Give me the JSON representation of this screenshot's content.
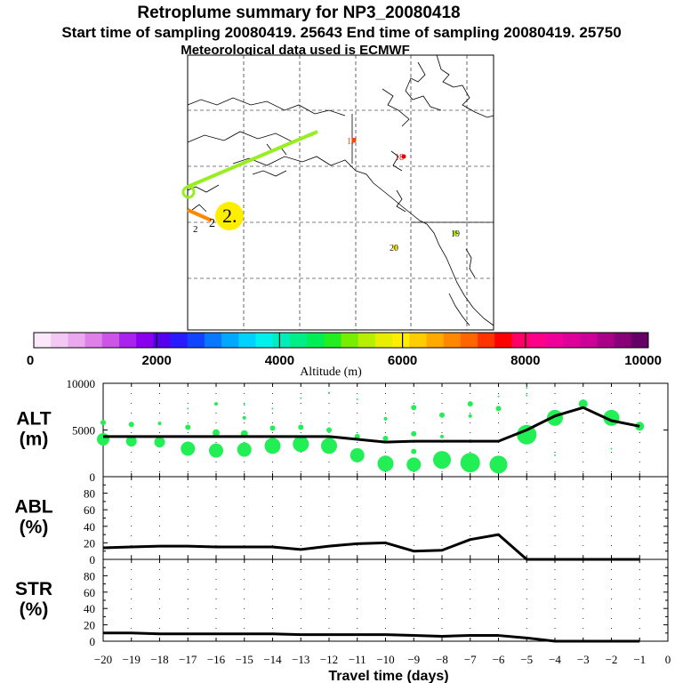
{
  "header": {
    "title": "Retroplume summary for NP3_20080418",
    "subtitle": "Start time of sampling 20080419. 25643     End time of sampling 20080419. 25750",
    "met_line": "Meteorological data used is ECMWF"
  },
  "map": {
    "labels": [
      {
        "text": "17",
        "color": "#ff4400"
      },
      {
        "text": "18",
        "color": "#dd0000"
      },
      {
        "text": "19",
        "color": "#222222"
      },
      {
        "text": "20",
        "color": "#222222"
      },
      {
        "text": "2",
        "color": "#000000"
      },
      {
        "text": "2",
        "color": "#000000"
      },
      {
        "text": "2.",
        "color": "#000000"
      }
    ]
  },
  "colorbar": {
    "label": "Altitude (m)",
    "ticks": [
      "0",
      "2000",
      "4000",
      "6000",
      "8000",
      "10000"
    ],
    "colors": [
      "#fbe8fb",
      "#f3c8f3",
      "#eaa8ee",
      "#de80e8",
      "#cc55e8",
      "#aa22ee",
      "#8800ee",
      "#5500ee",
      "#2a1aff",
      "#1144ff",
      "#0a77ff",
      "#00a8ff",
      "#00d2ff",
      "#00f0ee",
      "#00eebb",
      "#00ee88",
      "#00ee55",
      "#22ee22",
      "#77ee00",
      "#b8ee00",
      "#e8ee00",
      "#ffee00",
      "#ffcc00",
      "#ffaa00",
      "#ff8800",
      "#ff6600",
      "#ff3300",
      "#ff0000",
      "#ff0066",
      "#ff0088",
      "#ee0099",
      "#dd0099",
      "#cc0099",
      "#aa0088",
      "#880077",
      "#660066"
    ]
  },
  "chart_data": [
    {
      "type": "scatter",
      "name": "ALT",
      "ylabel": "ALT\n(m)",
      "ylabel_line1": "ALT",
      "ylabel_line2": "(m)",
      "ylim": [
        0,
        10000
      ],
      "yticks": [
        "10000",
        "5000",
        "0"
      ],
      "x": [
        -20,
        -19,
        -18,
        -17,
        -16,
        -15,
        -14,
        -13,
        -12,
        -11,
        -10,
        -9,
        -8,
        -7,
        -6,
        -5,
        -4,
        -3,
        -2,
        -1
      ],
      "mean_altitude": [
        4300,
        4300,
        4300,
        4300,
        4300,
        4300,
        4300,
        4300,
        4300,
        4000,
        3700,
        3800,
        3800,
        3800,
        3800,
        5000,
        6500,
        7400,
        6000,
        5400
      ],
      "plume_points": [
        {
          "x": -20,
          "y": 4000,
          "s": 7
        },
        {
          "x": -20,
          "y": 5800,
          "s": 3
        },
        {
          "x": -19,
          "y": 3800,
          "s": 6
        },
        {
          "x": -19,
          "y": 5600,
          "s": 3
        },
        {
          "x": -18,
          "y": 3700,
          "s": 6
        },
        {
          "x": -18,
          "y": 5700,
          "s": 2
        },
        {
          "x": -17,
          "y": 3000,
          "s": 8
        },
        {
          "x": -17,
          "y": 5300,
          "s": 3
        },
        {
          "x": -17,
          "y": 7300,
          "s": 1
        },
        {
          "x": -16,
          "y": 2800,
          "s": 8
        },
        {
          "x": -16,
          "y": 4700,
          "s": 4
        },
        {
          "x": -16,
          "y": 7800,
          "s": 2
        },
        {
          "x": -15,
          "y": 2900,
          "s": 8
        },
        {
          "x": -15,
          "y": 4600,
          "s": 4
        },
        {
          "x": -15,
          "y": 6300,
          "s": 2
        },
        {
          "x": -15,
          "y": 7700,
          "s": 1
        },
        {
          "x": -14,
          "y": 3300,
          "s": 9
        },
        {
          "x": -14,
          "y": 5200,
          "s": 3
        },
        {
          "x": -14,
          "y": 7300,
          "s": 1
        },
        {
          "x": -13,
          "y": 3500,
          "s": 9
        },
        {
          "x": -13,
          "y": 5300,
          "s": 3
        },
        {
          "x": -13,
          "y": 8400,
          "s": 1
        },
        {
          "x": -12,
          "y": 3300,
          "s": 9
        },
        {
          "x": -12,
          "y": 5000,
          "s": 3
        },
        {
          "x": -12,
          "y": 9000,
          "s": 1
        },
        {
          "x": -11,
          "y": 2300,
          "s": 8
        },
        {
          "x": -11,
          "y": 4300,
          "s": 3
        },
        {
          "x": -11,
          "y": 8300,
          "s": 1
        },
        {
          "x": -10,
          "y": 1400,
          "s": 9
        },
        {
          "x": -10,
          "y": 4100,
          "s": 3
        },
        {
          "x": -10,
          "y": 6200,
          "s": 2
        },
        {
          "x": -9,
          "y": 1300,
          "s": 8
        },
        {
          "x": -9,
          "y": 2700,
          "s": 3
        },
        {
          "x": -9,
          "y": 4600,
          "s": 3
        },
        {
          "x": -9,
          "y": 7400,
          "s": 3
        },
        {
          "x": -8,
          "y": 1800,
          "s": 10
        },
        {
          "x": -8,
          "y": 4300,
          "s": 2
        },
        {
          "x": -8,
          "y": 6600,
          "s": 3
        },
        {
          "x": -7,
          "y": 1500,
          "s": 11
        },
        {
          "x": -7,
          "y": 3800,
          "s": 2
        },
        {
          "x": -7,
          "y": 7800,
          "s": 3
        },
        {
          "x": -7,
          "y": 6500,
          "s": 2
        },
        {
          "x": -6,
          "y": 1300,
          "s": 10
        },
        {
          "x": -6,
          "y": 7300,
          "s": 3
        },
        {
          "x": -6,
          "y": 8600,
          "s": 1
        },
        {
          "x": -5,
          "y": 4500,
          "s": 11
        },
        {
          "x": -5,
          "y": 8700,
          "s": 1
        },
        {
          "x": -5,
          "y": 9500,
          "s": 1
        },
        {
          "x": -4,
          "y": 6300,
          "s": 9
        },
        {
          "x": -4,
          "y": 2300,
          "s": 1
        },
        {
          "x": -3,
          "y": 7800,
          "s": 5
        },
        {
          "x": -2,
          "y": 6300,
          "s": 9
        },
        {
          "x": -2,
          "y": 3000,
          "s": 1
        },
        {
          "x": -1,
          "y": 5400,
          "s": 5
        }
      ]
    },
    {
      "type": "line",
      "name": "ABL",
      "ylabel_line1": "ABL",
      "ylabel_line2": "(%)",
      "ylim": [
        0,
        100
      ],
      "yticks": [
        "80",
        "60",
        "40",
        "20",
        "0"
      ],
      "x": [
        -20,
        -19,
        -18,
        -17,
        -16,
        -15,
        -14,
        -13,
        -12,
        -11,
        -10,
        -9,
        -8,
        -7,
        -6,
        -5,
        -4,
        -3,
        -2,
        -1
      ],
      "values": [
        14,
        15,
        16,
        16,
        15,
        15,
        15,
        12,
        16,
        19,
        20,
        10,
        11,
        24,
        30,
        0,
        0,
        0,
        0,
        0
      ]
    },
    {
      "type": "line",
      "name": "STR",
      "ylabel_line1": "STR",
      "ylabel_line2": "(%)",
      "ylim": [
        0,
        100
      ],
      "yticks": [
        "80",
        "60",
        "40",
        "20",
        "0"
      ],
      "x": [
        -20,
        -19,
        -18,
        -17,
        -16,
        -15,
        -14,
        -13,
        -12,
        -11,
        -10,
        -9,
        -8,
        -7,
        -6,
        -5,
        -4,
        -3,
        -2,
        -1
      ],
      "values": [
        10,
        10,
        9,
        9,
        9,
        9,
        9,
        8,
        8,
        8,
        8,
        7,
        6,
        7,
        7,
        4,
        0,
        0,
        0,
        0
      ]
    }
  ],
  "xaxis": {
    "label": "Travel time (days)",
    "ticks": [
      "−20",
      "−19",
      "−18",
      "−17",
      "−16",
      "−15",
      "−14",
      "−13",
      "−12",
      "−11",
      "−10",
      "−9",
      "−8",
      "−7",
      "−6",
      "−5",
      "−4",
      "−3",
      "−2",
      "−1",
      "0"
    ]
  }
}
